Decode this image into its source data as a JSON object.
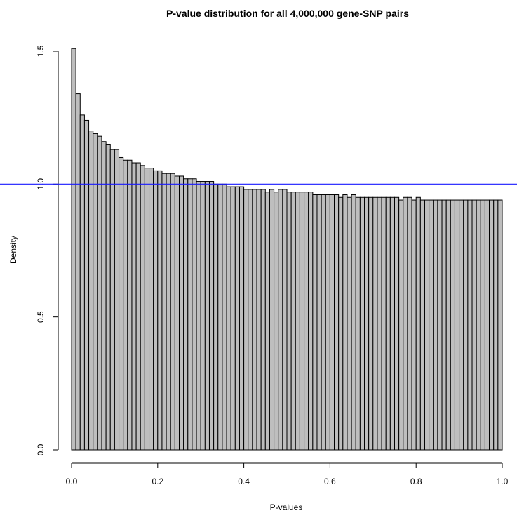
{
  "chart_data": {
    "type": "bar",
    "title": "P-value distribution for all 4,000,000 gene-SNP pairs",
    "xlabel": "P-values",
    "ylabel": "Density",
    "xlim": [
      0.0,
      1.0
    ],
    "ylim": [
      0.0,
      1.5
    ],
    "bin_width": 0.01,
    "xticks": [
      "0.0",
      "0.2",
      "0.4",
      "0.6",
      "0.8",
      "1.0"
    ],
    "yticks": [
      "0.0",
      "0.5",
      "1.0",
      "1.5"
    ],
    "reference_line": {
      "y": 1.0,
      "color": "#1a1aff"
    },
    "bar_fill": "#bebebe",
    "bar_stroke": "#000000",
    "grid": false,
    "values": [
      1.51,
      1.34,
      1.26,
      1.24,
      1.2,
      1.19,
      1.18,
      1.16,
      1.15,
      1.13,
      1.13,
      1.1,
      1.09,
      1.09,
      1.08,
      1.08,
      1.07,
      1.06,
      1.06,
      1.05,
      1.05,
      1.04,
      1.04,
      1.04,
      1.03,
      1.03,
      1.02,
      1.02,
      1.02,
      1.01,
      1.01,
      1.01,
      1.01,
      1.0,
      1.0,
      1.0,
      0.99,
      0.99,
      0.99,
      0.99,
      0.98,
      0.98,
      0.98,
      0.98,
      0.98,
      0.97,
      0.98,
      0.97,
      0.98,
      0.98,
      0.97,
      0.97,
      0.97,
      0.97,
      0.97,
      0.97,
      0.96,
      0.96,
      0.96,
      0.96,
      0.96,
      0.96,
      0.95,
      0.96,
      0.95,
      0.96,
      0.95,
      0.95,
      0.95,
      0.95,
      0.95,
      0.95,
      0.95,
      0.95,
      0.95,
      0.95,
      0.94,
      0.95,
      0.95,
      0.94,
      0.95,
      0.94,
      0.94,
      0.94,
      0.94,
      0.94,
      0.94,
      0.94,
      0.94,
      0.94,
      0.94,
      0.94,
      0.94,
      0.94,
      0.94,
      0.94,
      0.94,
      0.94,
      0.94,
      0.94
    ]
  }
}
